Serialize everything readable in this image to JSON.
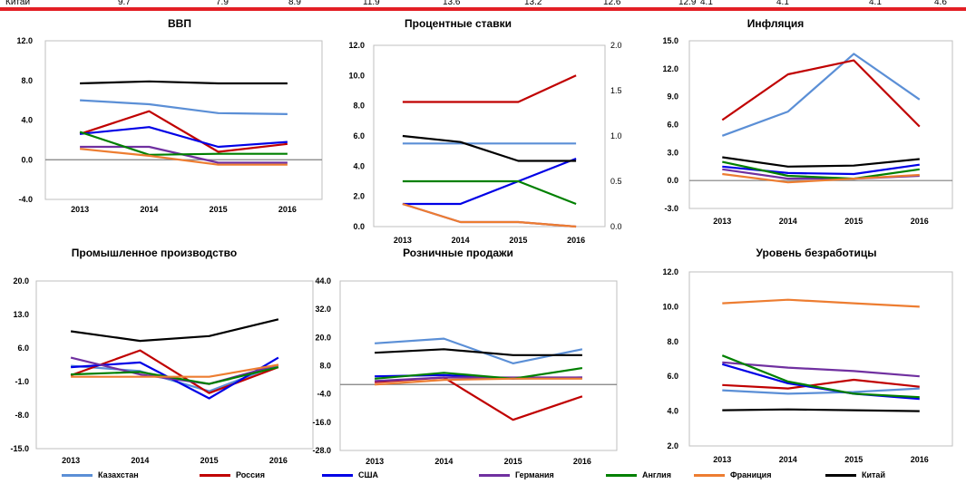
{
  "top_row": {
    "label": "Китай",
    "values": [
      "9.7",
      "7.9",
      "8.9",
      "11.9",
      "13.6",
      "13.2",
      "12.6",
      "12.9",
      "4.1",
      "4.1",
      "4.1",
      "4.6"
    ]
  },
  "colors": {
    "Казахстан": "#5b8fd6",
    "Россия": "#c00000",
    "США": "#0000e6",
    "Германия": "#7030a0",
    "Англия": "#008000",
    "Франиция": "#ed7d31",
    "Китай": "#000000"
  },
  "legend": [
    "Казахстан",
    "Россия",
    "США",
    "Германия",
    "Англия",
    "Франиция",
    "Китай"
  ],
  "chart_data": [
    {
      "type": "line",
      "title": "ВВП",
      "categories": [
        "2013",
        "2014",
        "2015",
        "2016"
      ],
      "ylim": [
        -4,
        12
      ],
      "yticks": [
        "12.0",
        "8.0",
        "4.0",
        "0.0",
        "-4.0"
      ],
      "series": [
        {
          "name": "Казахстан",
          "values": [
            6.0,
            5.6,
            4.7,
            4.6
          ]
        },
        {
          "name": "Россия",
          "values": [
            2.6,
            4.9,
            0.8,
            1.6
          ]
        },
        {
          "name": "США",
          "values": [
            2.6,
            3.3,
            1.3,
            1.8
          ]
        },
        {
          "name": "Германия",
          "values": [
            1.3,
            1.3,
            -0.3,
            -0.3
          ]
        },
        {
          "name": "Англия",
          "values": [
            2.8,
            0.5,
            0.6,
            0.6
          ]
        },
        {
          "name": "Франиция",
          "values": [
            1.1,
            0.4,
            -0.5,
            -0.5
          ]
        },
        {
          "name": "Китай",
          "values": [
            7.7,
            7.9,
            7.7,
            7.7
          ]
        }
      ]
    },
    {
      "type": "line",
      "title": "Процентные ставки",
      "categories": [
        "2013",
        "2014",
        "2015",
        "2016"
      ],
      "ylim": [
        0,
        12
      ],
      "yticks": [
        "12.0",
        "10.0",
        "8.0",
        "6.0",
        "4.0",
        "2.0",
        "0.0"
      ],
      "y2lim": [
        0,
        2
      ],
      "y2ticks": [
        "2.0",
        "1.5",
        "1.0",
        "0.5",
        "0.0"
      ],
      "series": [
        {
          "name": "Казахстан",
          "values": [
            5.5,
            5.5,
            5.5,
            5.5
          ]
        },
        {
          "name": "Россия",
          "values": [
            8.25,
            8.25,
            8.25,
            10.0
          ]
        },
        {
          "name": "США",
          "axis": "right",
          "values": [
            0.25,
            0.25,
            0.5,
            0.75
          ]
        },
        {
          "name": "Англия",
          "axis": "right",
          "values": [
            0.5,
            0.5,
            0.5,
            0.25
          ]
        },
        {
          "name": "Германия",
          "axis": "right",
          "values": [
            0.25,
            0.05,
            0.05,
            0.0
          ]
        },
        {
          "name": "Франиция",
          "axis": "right",
          "values": [
            0.25,
            0.05,
            0.05,
            0.0
          ]
        },
        {
          "name": "Китай",
          "values": [
            6.0,
            5.6,
            4.35,
            4.35
          ]
        }
      ]
    },
    {
      "type": "line",
      "title": "Инфляция",
      "categories": [
        "2013",
        "2014",
        "2015",
        "2016"
      ],
      "ylim": [
        -3,
        15
      ],
      "yticks": [
        "15.0",
        "12.0",
        "9.0",
        "6.0",
        "3.0",
        "0.0",
        "-3.0"
      ],
      "series": [
        {
          "name": "Казахстан",
          "values": [
            4.8,
            7.4,
            13.6,
            8.7
          ]
        },
        {
          "name": "Россия",
          "values": [
            6.5,
            11.4,
            12.9,
            5.8
          ]
        },
        {
          "name": "США",
          "values": [
            1.5,
            0.8,
            0.7,
            1.7
          ]
        },
        {
          "name": "Германия",
          "values": [
            1.2,
            0.2,
            0.2,
            0.5
          ]
        },
        {
          "name": "Англия",
          "values": [
            2.0,
            0.5,
            0.2,
            1.2
          ]
        },
        {
          "name": "Франиция",
          "values": [
            0.7,
            -0.2,
            0.2,
            0.6
          ]
        },
        {
          "name": "Китай",
          "values": [
            2.5,
            1.5,
            1.6,
            2.3
          ]
        }
      ]
    },
    {
      "type": "line",
      "title": "Промышленное производство",
      "categories": [
        "2013",
        "2014",
        "2015",
        "2016"
      ],
      "ylim": [
        -15,
        20
      ],
      "yticks": [
        "20.0",
        "13.0",
        "6.0",
        "-1.0",
        "-8.0",
        "-15.0"
      ],
      "series": [
        {
          "name": "Казахстан",
          "values": [
            2.3,
            1.2,
            -3.0,
            2.5
          ]
        },
        {
          "name": "Россия",
          "values": [
            0.3,
            5.5,
            -3.4,
            2.0
          ]
        },
        {
          "name": "США",
          "values": [
            2.0,
            3.0,
            -4.5,
            4.0
          ]
        },
        {
          "name": "Германия",
          "values": [
            4.0,
            0.5,
            -1.5,
            2.5
          ]
        },
        {
          "name": "Англия",
          "values": [
            0.5,
            1.0,
            -1.5,
            2.0
          ]
        },
        {
          "name": "Франиция",
          "values": [
            0.0,
            0.0,
            0.0,
            2.5
          ]
        },
        {
          "name": "Китай",
          "values": [
            9.5,
            7.5,
            8.5,
            12.0
          ]
        }
      ]
    },
    {
      "type": "line",
      "title": "Розничные продажи",
      "categories": [
        "2013",
        "2014",
        "2015",
        "2016"
      ],
      "ylim": [
        -28,
        44
      ],
      "yticks": [
        "44.0",
        "32.0",
        "20.0",
        "8.0",
        "-4.0",
        "-16.0",
        "-28.0"
      ],
      "series": [
        {
          "name": "Казахстан",
          "values": [
            17.5,
            19.5,
            9.0,
            15.0
          ]
        },
        {
          "name": "Россия",
          "values": [
            1.0,
            3.0,
            -15.0,
            -5.0
          ]
        },
        {
          "name": "США",
          "values": [
            3.5,
            4.0,
            2.5,
            3.0
          ]
        },
        {
          "name": "Германия",
          "values": [
            1.5,
            3.0,
            3.0,
            3.0
          ]
        },
        {
          "name": "Англия",
          "values": [
            2.5,
            5.0,
            2.5,
            7.0
          ]
        },
        {
          "name": "Франиция",
          "values": [
            0.0,
            2.0,
            2.5,
            2.5
          ]
        },
        {
          "name": "Китай",
          "values": [
            13.5,
            15.0,
            12.5,
            12.5
          ]
        }
      ]
    },
    {
      "type": "line",
      "title": "Уровень безработицы",
      "categories": [
        "2013",
        "2014",
        "2015",
        "2016"
      ],
      "ylim": [
        2,
        12
      ],
      "yticks": [
        "12.0",
        "10.0",
        "8.0",
        "6.0",
        "4.0",
        "2.0"
      ],
      "series": [
        {
          "name": "Казахстан",
          "values": [
            5.2,
            5.0,
            5.1,
            5.3
          ]
        },
        {
          "name": "Россия",
          "values": [
            5.5,
            5.3,
            5.8,
            5.4
          ]
        },
        {
          "name": "США",
          "values": [
            6.7,
            5.6,
            5.0,
            4.7
          ]
        },
        {
          "name": "Германия",
          "values": [
            6.8,
            6.5,
            6.3,
            6.0
          ]
        },
        {
          "name": "Англия",
          "values": [
            7.2,
            5.7,
            5.0,
            4.8
          ]
        },
        {
          "name": "Франиция",
          "values": [
            10.2,
            10.4,
            10.2,
            10.0
          ]
        },
        {
          "name": "Китай",
          "values": [
            4.05,
            4.1,
            4.05,
            4.0
          ]
        }
      ]
    }
  ]
}
